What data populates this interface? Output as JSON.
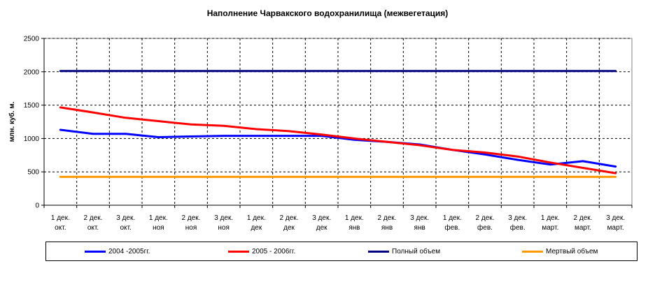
{
  "chart_data": {
    "type": "line",
    "title": "Наполнение Чарвакского водохранилища  (межвегетация)",
    "xlabel": "",
    "ylabel": "млн. куб. м.",
    "ylim": [
      0,
      2500
    ],
    "yticks": [
      0,
      500,
      1000,
      1500,
      2000,
      2500
    ],
    "grid": true,
    "legend_position": "bottom",
    "categories": [
      [
        "1 дек.",
        "окт."
      ],
      [
        "2 дек.",
        "окт."
      ],
      [
        "3 дек.",
        "окт."
      ],
      [
        "1 дек.",
        "ноя"
      ],
      [
        "2 дек.",
        "ноя"
      ],
      [
        "3 дек.",
        "ноя"
      ],
      [
        "1 дек.",
        "дек"
      ],
      [
        "2 дек.",
        "дек"
      ],
      [
        "3 дек.",
        "дек"
      ],
      [
        "1 дек.",
        "янв"
      ],
      [
        "2 дек.",
        "янв"
      ],
      [
        "3 дек.",
        "янв"
      ],
      [
        "1 дек.",
        "фев."
      ],
      [
        "2 дек.",
        "фев."
      ],
      [
        "3 дек.",
        "фев."
      ],
      [
        "1 дек.",
        "март."
      ],
      [
        "2 дек.",
        "март."
      ],
      [
        "3 дек.",
        "март."
      ]
    ],
    "series": [
      {
        "name": "2004 -2005гг.",
        "color": "#0000ff",
        "values": [
          1130,
          1070,
          1070,
          1020,
          1030,
          1040,
          1040,
          1040,
          1040,
          980,
          950,
          910,
          830,
          760,
          680,
          610,
          660,
          580
        ]
      },
      {
        "name": "2005 - 2006гг.",
        "color": "#ff0000",
        "values": [
          1465,
          1390,
          1310,
          1260,
          1210,
          1190,
          1140,
          1110,
          1060,
          1000,
          950,
          900,
          830,
          790,
          730,
          640,
          560,
          480
        ]
      },
      {
        "name": "Полный объем",
        "color": "#000080",
        "values": [
          2010,
          2010,
          2010,
          2010,
          2010,
          2010,
          2010,
          2010,
          2010,
          2010,
          2010,
          2010,
          2010,
          2010,
          2010,
          2010,
          2010,
          2010
        ]
      },
      {
        "name": "Мертвый объем",
        "color": "#ff9900",
        "values": [
          425,
          425,
          425,
          425,
          425,
          425,
          425,
          425,
          425,
          425,
          425,
          425,
          425,
          425,
          425,
          425,
          425,
          425
        ]
      }
    ]
  }
}
